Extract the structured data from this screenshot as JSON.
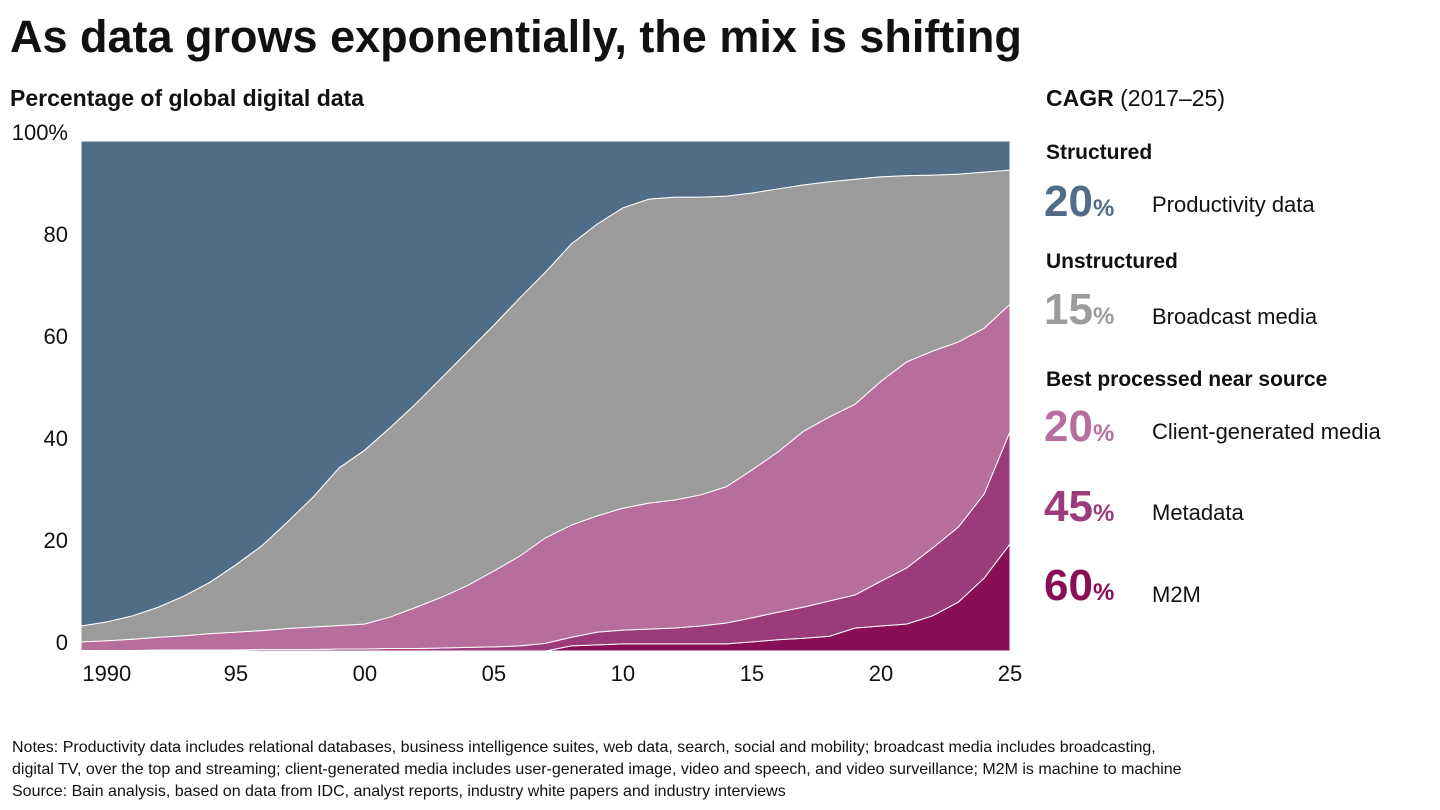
{
  "chart_data": {
    "type": "stacked_area",
    "title": "As data grows exponentially, the mix is shifting",
    "subtitle": "Percentage of global digital data",
    "legend_title": "CAGR",
    "legend_subtitle": "(2017–25)",
    "headings": [
      "Structured",
      "Unstructured",
      "Best processed near source"
    ],
    "x": [
      1989,
      1990,
      1991,
      1992,
      1993,
      1994,
      1995,
      1996,
      1997,
      1998,
      1999,
      2000,
      2001,
      2002,
      2003,
      2004,
      2005,
      2006,
      2007,
      2008,
      2009,
      2010,
      2011,
      2012,
      2013,
      2014,
      2015,
      2016,
      2017,
      2018,
      2019,
      2020,
      2021,
      2022,
      2023,
      2024,
      2025
    ],
    "xlim": [
      1989,
      2025
    ],
    "xticks": [
      1990,
      {
        "value": 1995,
        "label": "95"
      },
      {
        "value": 2000,
        "label": "00"
      },
      {
        "value": 2005,
        "label": "05"
      },
      {
        "value": 2010,
        "label": "10"
      },
      {
        "value": 2015,
        "label": "15"
      },
      {
        "value": 2020,
        "label": "20"
      },
      {
        "value": 2025,
        "label": "25"
      }
    ],
    "ylim": [
      0,
      100
    ],
    "yticks": [
      0,
      20,
      40,
      60,
      80,
      {
        "value": 100,
        "label": "100%"
      }
    ],
    "grid": false,
    "series": [
      {
        "name": "Productivity data",
        "color": "#516c87",
        "cagr": "20",
        "cagr_unit": "%",
        "values": [
          95.1,
          94.3,
          93.1,
          91.4,
          89.2,
          86.5,
          83.1,
          79.4,
          74.7,
          69.8,
          64.1,
          60.6,
          56.1,
          51.4,
          46.3,
          41.2,
          36.1,
          30.8,
          25.7,
          20.2,
          16.3,
          13.1,
          11.4,
          11.0,
          11.0,
          10.8,
          10.2,
          9.4,
          8.6,
          8.0,
          7.5,
          7.0,
          6.8,
          6.7,
          6.5,
          6.1,
          5.7
        ]
      },
      {
        "name": "Broadcast media",
        "color": "#9b9b9b",
        "cagr": "15",
        "cagr_unit": "%",
        "values": [
          3.1,
          3.7,
          4.6,
          5.9,
          7.8,
          10.1,
          13.2,
          16.6,
          20.9,
          25.5,
          30.9,
          34.1,
          37.2,
          40.0,
          43.1,
          45.9,
          48.2,
          50.6,
          52.1,
          55.1,
          57.2,
          58.9,
          59.6,
          59.4,
          58.4,
          57.0,
          54.3,
          51.6,
          48.3,
          46.1,
          44.1,
          40.1,
          36.5,
          34.5,
          32.9,
          30.6,
          26.3
        ]
      },
      {
        "name": "Client-generated media",
        "color": "#b86e9c",
        "cagr": "20",
        "cagr_unit": "%",
        "values": [
          1.7,
          1.9,
          2.2,
          2.5,
          2.8,
          3.2,
          3.5,
          3.7,
          4.1,
          4.4,
          4.6,
          4.9,
          6.2,
          8.1,
          10.0,
          12.2,
          14.9,
          17.6,
          20.7,
          22.0,
          22.8,
          23.9,
          24.7,
          25.1,
          25.7,
          26.7,
          29.0,
          31.4,
          34.5,
          36.1,
          37.4,
          39.2,
          40.4,
          38.6,
          36.3,
          32.5,
          25.0
        ]
      },
      {
        "name": "Metadata",
        "color": "#9b3b7a",
        "cagr": "45",
        "cagr_unit": "%",
        "values": [
          0.1,
          0.1,
          0.1,
          0.2,
          0.2,
          0.2,
          0.2,
          0.3,
          0.3,
          0.3,
          0.4,
          0.4,
          0.5,
          0.5,
          0.6,
          0.7,
          0.8,
          1.0,
          1.5,
          1.7,
          2.5,
          2.7,
          2.9,
          3.1,
          3.5,
          4.1,
          4.7,
          5.4,
          6.1,
          6.9,
          6.5,
          8.8,
          11.0,
          13.3,
          14.7,
          16.5,
          22.0
        ]
      },
      {
        "name": "M2M",
        "color": "#880e55",
        "cagr": "60",
        "cagr_unit": "%",
        "values": [
          0,
          0,
          0,
          0,
          0,
          0,
          0,
          0,
          0,
          0,
          0,
          0,
          0,
          0,
          0,
          0,
          0,
          0,
          0,
          1.0,
          1.2,
          1.4,
          1.4,
          1.4,
          1.4,
          1.4,
          1.8,
          2.2,
          2.5,
          2.9,
          4.5,
          4.9,
          5.3,
          6.9,
          9.6,
          14.3,
          21.0
        ]
      }
    ],
    "notes": [
      "Notes: Productivity data includes relational databases, business intelligence suites, web data, search, social and mobility; broadcast media includes broadcasting,",
      "digital TV, over the top and streaming; client-generated media includes user-generated image, video and speech, and video surveillance; M2M is machine to machine",
      "Source: Bain analysis, based on data from IDC, analyst reports, industry white papers and industry interviews"
    ]
  }
}
